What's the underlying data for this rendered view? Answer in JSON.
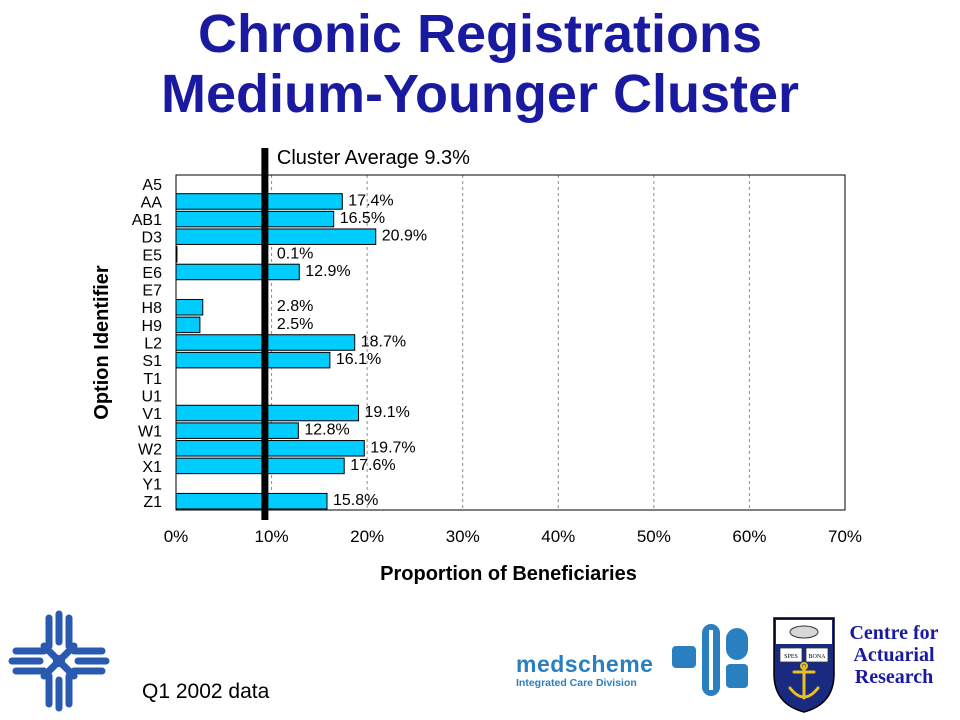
{
  "title_lines": [
    "Chronic Registrations",
    "Medium-Younger Cluster"
  ],
  "footer_note": "Q1 2002 data",
  "logos": {
    "left": "cross-network-logo",
    "medscheme_name": "medscheme",
    "medscheme_division": "Integrated Care Division",
    "medscheme_icon": "medscheme-symbol-icon",
    "crest": "university-crest-icon",
    "crest_motto_left": "SPES",
    "crest_motto_right": "BONA",
    "centre_lines": [
      "Centre for",
      "Actuarial",
      "Research"
    ]
  },
  "colors": {
    "title": "#1a1aa0",
    "bar": "#00ccff",
    "bar_stroke": "#000000",
    "average_line": "#000000",
    "grid": "#8c8c8c",
    "logo_blue": "#2a5ab0"
  },
  "chart_data": {
    "type": "bar",
    "orientation": "horizontal",
    "categories": [
      "A5",
      "AA",
      "AB1",
      "D3",
      "E5",
      "E6",
      "E7",
      "H8",
      "H9",
      "L2",
      "S1",
      "T1",
      "U1",
      "V1",
      "W1",
      "W2",
      "X1",
      "Y1",
      "Z1"
    ],
    "values": [
      null,
      17.4,
      16.5,
      20.9,
      0.1,
      12.9,
      null,
      2.8,
      2.5,
      18.7,
      16.1,
      null,
      null,
      19.1,
      12.8,
      19.7,
      17.6,
      null,
      15.8
    ],
    "value_labels": [
      "",
      "17.4%",
      "16.5%",
      "20.9%",
      "0.1%",
      "12.9%",
      "",
      "2.8%",
      "2.5%",
      "18.7%",
      "16.1%",
      "",
      "",
      "19.1%",
      "12.8%",
      "19.7%",
      "17.6%",
      "",
      "15.8%"
    ],
    "title": "",
    "xlabel": "Proportion of Beneficiaries",
    "ylabel": "Option Identifier",
    "xlim": [
      0,
      70
    ],
    "x_ticks": [
      0,
      10,
      20,
      30,
      40,
      50,
      60,
      70
    ],
    "x_tick_labels": [
      "0%",
      "10%",
      "20%",
      "30%",
      "40%",
      "50%",
      "60%",
      "70%"
    ],
    "grid": "vertical dashed",
    "reference_line": {
      "value": 9.3,
      "label": "Cluster Average 9.3%"
    }
  }
}
